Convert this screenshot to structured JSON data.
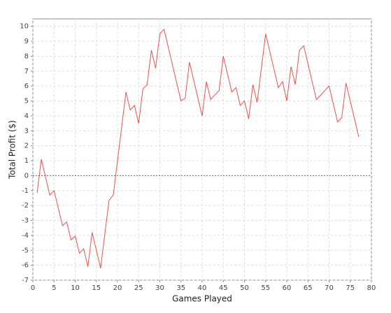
{
  "chart_data": {
    "type": "line",
    "x_label": "Games Played",
    "y_label": "Total Profit ($)",
    "x": [
      1,
      2,
      4,
      5,
      7,
      8,
      9,
      10,
      11,
      12,
      13,
      14,
      16,
      18,
      19,
      22,
      23,
      24,
      25,
      26,
      27,
      28,
      29,
      30,
      31,
      35,
      36,
      37,
      40,
      41,
      42,
      44,
      45,
      47,
      48,
      49,
      50,
      51,
      52,
      53,
      55,
      58,
      59,
      60,
      61,
      62,
      63,
      64,
      67,
      68,
      70,
      72,
      73,
      74,
      77
    ],
    "series": [
      {
        "name": "Total Profit",
        "color": "#e8514d",
        "values": [
          -1.15,
          1.1,
          -1.3,
          -1.0,
          -3.35,
          -3.1,
          -4.3,
          -4.05,
          -5.2,
          -4.9,
          -6.1,
          -3.8,
          -6.2,
          -1.65,
          -1.3,
          5.6,
          4.4,
          4.7,
          3.5,
          5.8,
          6.1,
          8.4,
          7.2,
          9.5,
          9.8,
          5.0,
          5.2,
          7.6,
          4.0,
          6.3,
          5.1,
          5.7,
          8.0,
          5.6,
          5.9,
          4.7,
          5.0,
          3.8,
          6.1,
          4.9,
          9.5,
          5.9,
          6.3,
          5.0,
          7.3,
          6.1,
          8.4,
          8.7,
          5.1,
          5.4,
          6.0,
          3.6,
          3.9,
          6.2,
          2.6
        ]
      }
    ],
    "xlim": [
      0,
      80
    ],
    "ylim": [
      -7,
      10.5
    ],
    "xticks": [
      0,
      5,
      10,
      15,
      20,
      25,
      30,
      35,
      40,
      45,
      50,
      55,
      60,
      65,
      70,
      75,
      80
    ],
    "yticks": [
      -7,
      -6,
      -5,
      -4,
      -3,
      -2,
      -1,
      0,
      1,
      2,
      3,
      4,
      5,
      6,
      7,
      8,
      9,
      10
    ],
    "grid": true,
    "zero_line": true,
    "zero_line_color": "#5560b0"
  }
}
